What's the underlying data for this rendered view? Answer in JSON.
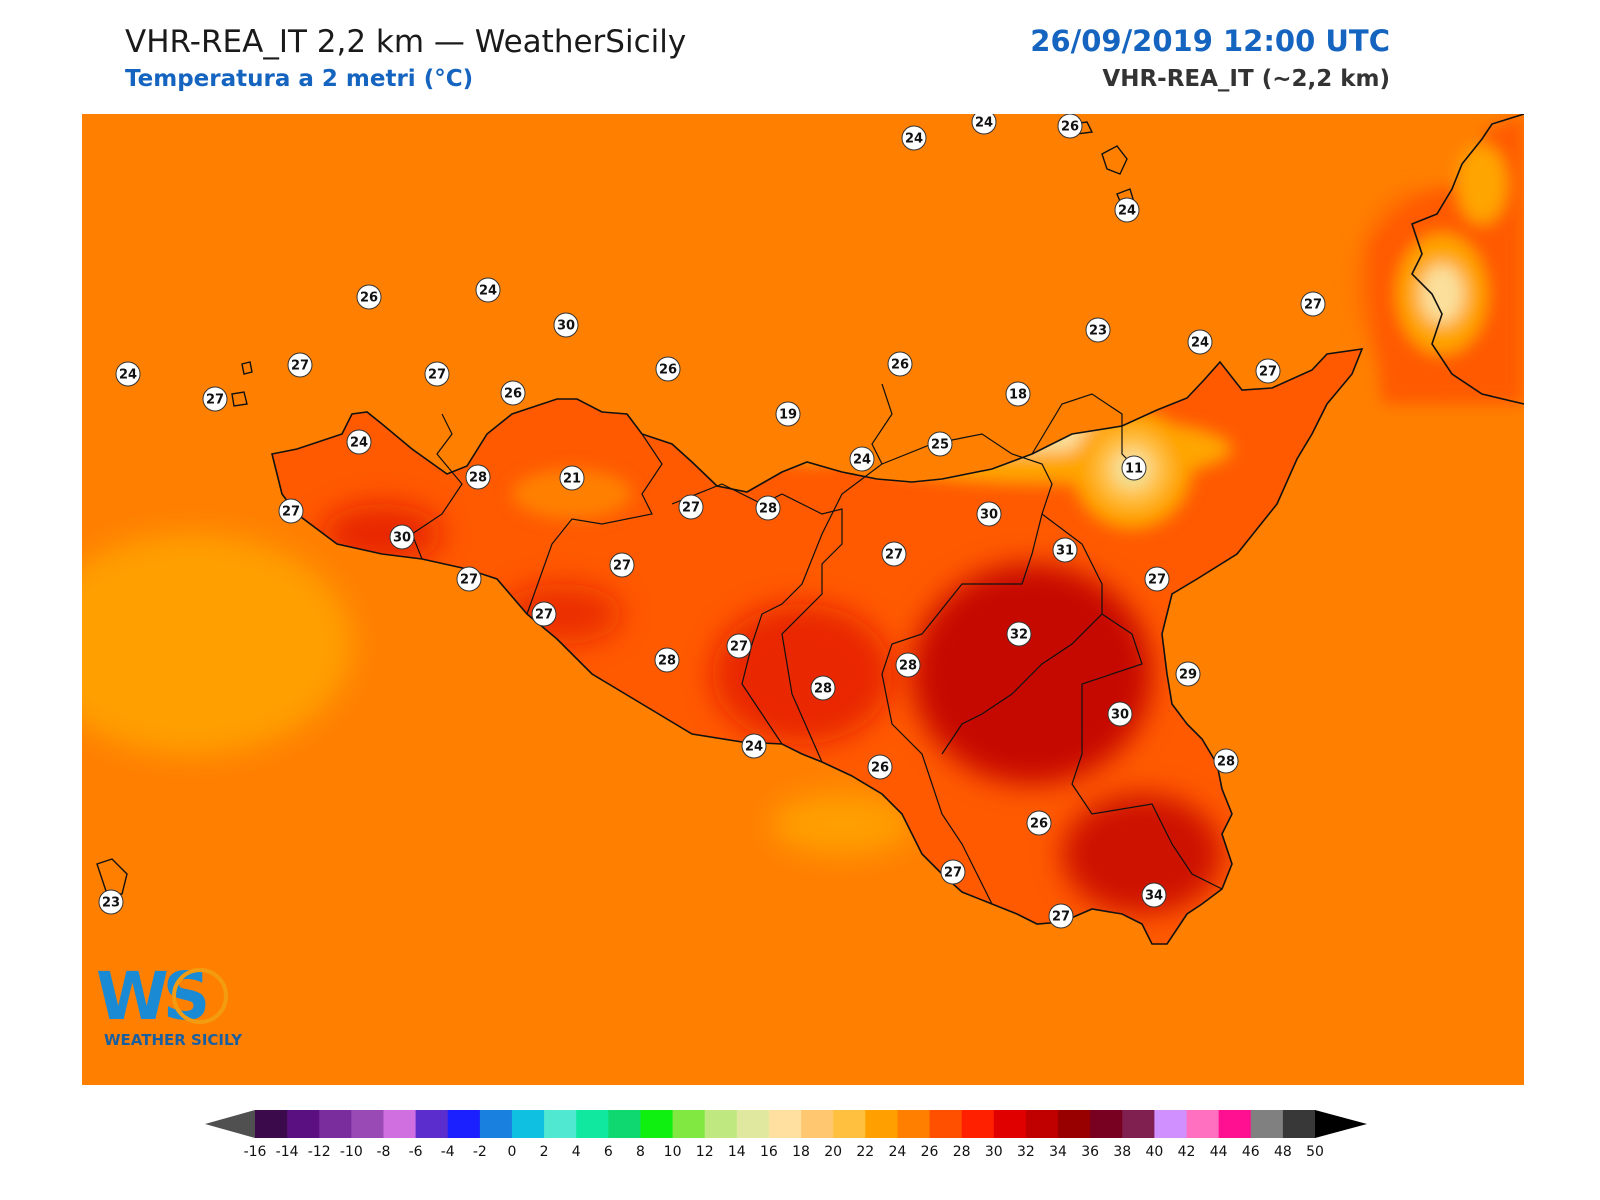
{
  "header": {
    "title": "VHR-REA_IT 2,2 km — WeatherSicily",
    "subtitle": "Temperatura a 2 metri (°C)",
    "datetime": "26/09/2019 12:00 UTC",
    "model": "VHR-REA_IT (~2,2 km)"
  },
  "logo": {
    "letters": "WS",
    "text": "WEATHER SICILY"
  },
  "colors": {
    "sea": "#ff8000",
    "land_base": "#ff5a00",
    "hot": "#e01000",
    "very_hot": "#c00000",
    "cool": "#ffa500",
    "cooler": "#ffc040",
    "coldest": "#fbe09c",
    "coast": "#111111"
  },
  "stations": [
    "24",
    "24",
    "26",
    "24",
    "26",
    "24",
    "30",
    "27",
    "24",
    "27",
    "24",
    "26",
    "27",
    "26",
    "27",
    "19",
    "18",
    "23",
    "24",
    "27",
    "26",
    "21",
    "28",
    "25",
    "24",
    "27",
    "11",
    "27",
    "30",
    "28",
    "27",
    "31",
    "30",
    "27",
    "27",
    "27",
    "27",
    "32",
    "28",
    "28",
    "29",
    "27",
    "28",
    "24",
    "30",
    "26",
    "28",
    "26",
    "27",
    "34",
    "27",
    "23"
  ],
  "colorbar": {
    "ticks": [
      "-16",
      "-14",
      "-12",
      "-10",
      "-8",
      "-6",
      "-4",
      "-2",
      "0",
      "2",
      "4",
      "6",
      "8",
      "10",
      "12",
      "14",
      "16",
      "18",
      "20",
      "22",
      "24",
      "26",
      "28",
      "30",
      "32",
      "34",
      "36",
      "38",
      "40",
      "42",
      "44",
      "46",
      "48",
      "50"
    ],
    "colors": [
      "#3a0a4a",
      "#5a1080",
      "#7a2d9c",
      "#9a4ab4",
      "#d070e0",
      "#5a2dcc",
      "#1a20ff",
      "#1a80e0",
      "#10c0e0",
      "#50e8d0",
      "#10e8a0",
      "#10d870",
      "#10f010",
      "#80e840",
      "#c0e880",
      "#e0e8a0",
      "#ffe0a0",
      "#ffc870",
      "#ffc040",
      "#ffa000",
      "#ff8000",
      "#ff5000",
      "#ff2000",
      "#e00000",
      "#c00000",
      "#980000",
      "#780020",
      "#802050",
      "#d090ff",
      "#ff70c0",
      "#ff1090",
      "#808080",
      "#383838"
    ]
  }
}
